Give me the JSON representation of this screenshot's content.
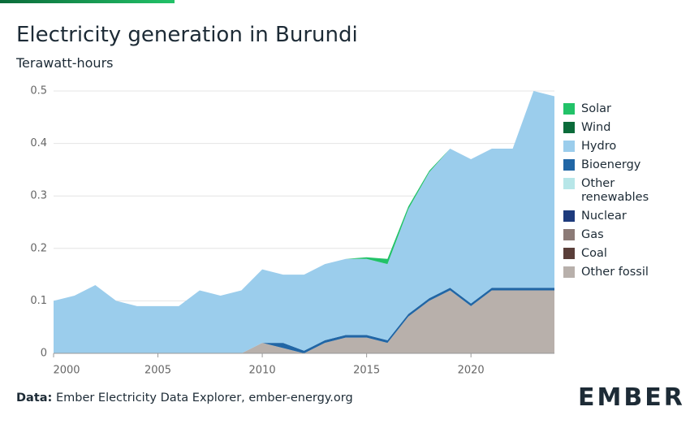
{
  "chart_data": {
    "type": "stacked_area",
    "title": "Electricity generation in Burundi",
    "subtitle": "Terawatt-hours",
    "x": [
      2000,
      2001,
      2002,
      2003,
      2004,
      2005,
      2006,
      2007,
      2008,
      2009,
      2010,
      2011,
      2012,
      2013,
      2014,
      2015,
      2016,
      2017,
      2018,
      2019,
      2020,
      2021,
      2022,
      2023,
      2024
    ],
    "series": [
      {
        "name": "Solar",
        "color": "#22c268",
        "values": [
          0,
          0,
          0,
          0,
          0,
          0,
          0,
          0,
          0,
          0,
          0,
          0,
          0,
          0,
          0,
          0.003,
          0.01,
          0.005,
          0.003,
          0,
          0,
          0,
          0,
          0,
          0
        ]
      },
      {
        "name": "Wind",
        "color": "#0b6b3a",
        "values": [
          0,
          0,
          0,
          0,
          0,
          0,
          0,
          0,
          0,
          0,
          0,
          0,
          0,
          0,
          0,
          0,
          0,
          0,
          0,
          0,
          0,
          0,
          0,
          0,
          0
        ]
      },
      {
        "name": "Hydro",
        "color": "#9bcdec",
        "values": [
          0.1,
          0.11,
          0.13,
          0.1,
          0.09,
          0.09,
          0.09,
          0.12,
          0.11,
          0.12,
          0.14,
          0.13,
          0.145,
          0.145,
          0.145,
          0.145,
          0.145,
          0.2,
          0.24,
          0.265,
          0.275,
          0.265,
          0.265,
          0.375,
          0.365
        ]
      },
      {
        "name": "Bioenergy",
        "color": "#2166a5",
        "values": [
          0,
          0,
          0,
          0,
          0,
          0,
          0,
          0,
          0,
          0,
          0,
          0.01,
          0.005,
          0.005,
          0.005,
          0.005,
          0.005,
          0.005,
          0.005,
          0.005,
          0.005,
          0.005,
          0.005,
          0.005,
          0.005
        ]
      },
      {
        "name": "Other renewables",
        "color": "#b7e6e8",
        "values": [
          0,
          0,
          0,
          0,
          0,
          0,
          0,
          0,
          0,
          0,
          0,
          0,
          0,
          0,
          0,
          0,
          0,
          0,
          0,
          0,
          0,
          0,
          0,
          0,
          0
        ]
      },
      {
        "name": "Nuclear",
        "color": "#1d3a7c",
        "values": [
          0,
          0,
          0,
          0,
          0,
          0,
          0,
          0,
          0,
          0,
          0,
          0,
          0,
          0,
          0,
          0,
          0,
          0,
          0,
          0,
          0,
          0,
          0,
          0,
          0
        ]
      },
      {
        "name": "Gas",
        "color": "#8c7b77",
        "values": [
          0,
          0,
          0,
          0,
          0,
          0,
          0,
          0,
          0,
          0,
          0,
          0,
          0,
          0,
          0,
          0,
          0,
          0,
          0,
          0,
          0,
          0,
          0,
          0,
          0
        ]
      },
      {
        "name": "Coal",
        "color": "#5a3e39",
        "values": [
          0,
          0,
          0,
          0,
          0,
          0,
          0,
          0,
          0,
          0,
          0,
          0,
          0,
          0,
          0,
          0,
          0,
          0,
          0,
          0,
          0,
          0,
          0,
          0,
          0
        ]
      },
      {
        "name": "Other fossil",
        "color": "#b8b0ab",
        "values": [
          0,
          0,
          0,
          0,
          0,
          0,
          0,
          0,
          0,
          0,
          0.02,
          0.01,
          0,
          0.02,
          0.03,
          0.03,
          0.02,
          0.07,
          0.1,
          0.12,
          0.09,
          0.12,
          0.12,
          0.12,
          0.12
        ]
      }
    ],
    "xlim": [
      2000,
      2024
    ],
    "xticks": [
      2000,
      2005,
      2010,
      2015,
      2020
    ],
    "ylim": [
      0,
      0.5
    ],
    "yticks": [
      0,
      0.1,
      0.2,
      0.3,
      0.4,
      0.5
    ],
    "grid": true,
    "legend": "right",
    "source_label": "Data:",
    "source": "Ember Electricity Data Explorer, ember-energy.org",
    "logo": "EMBER"
  }
}
